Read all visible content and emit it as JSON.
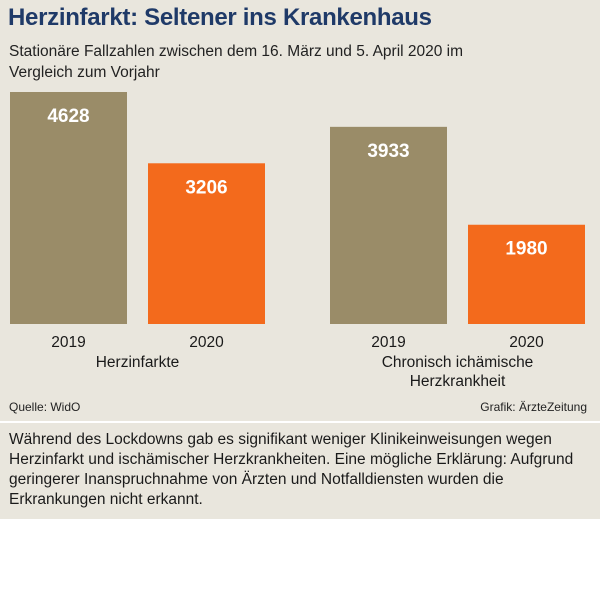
{
  "header": {
    "title": "Herzinfarkt: Seltener ins Krankenhaus",
    "subtitle": "Stationäre Fallzahlen zwischen dem 16. März und 5. April 2020 im Vergleich zum Vorjahr"
  },
  "chart_data": {
    "type": "bar",
    "title": "Herzinfarkt: Seltener ins Krankenhaus",
    "subtitle": "Stationäre Fallzahlen zwischen dem 16. März und 5. April 2020 im Vergleich zum Vorjahr",
    "groups": [
      {
        "label": "Herzinfarkte",
        "label_lines": [
          "Herzinfarkte"
        ]
      },
      {
        "label": "Chronisch ichämische Herzkrankheit",
        "label_lines": [
          "Chronisch ichämische",
          "Herzkrankheit"
        ]
      }
    ],
    "categories": [
      "2019",
      "2020"
    ],
    "series": [
      {
        "values": [
          4628,
          3933
        ],
        "color": "#9a8c68"
      },
      {
        "values": [
          3206,
          1980
        ],
        "color": "#f36a1c"
      }
    ],
    "ylim": [
      0,
      4628
    ],
    "grid": false,
    "legend": "none",
    "data_labels": true
  },
  "footer": {
    "source": "Quelle: WidO",
    "credit": "Grafik: ÄrzteZeitung"
  },
  "note": "Während des Lockdowns gab es signifikant weniger Klinikeinweisungen wegen Herzinfarkt und ischämischer Herzkrankheiten. Eine mögliche Erklärung: Aufgrund geringerer Inanspruchnahme von Ärzten und Notfalldiensten wurden die Erkrankungen nicht erkannt."
}
